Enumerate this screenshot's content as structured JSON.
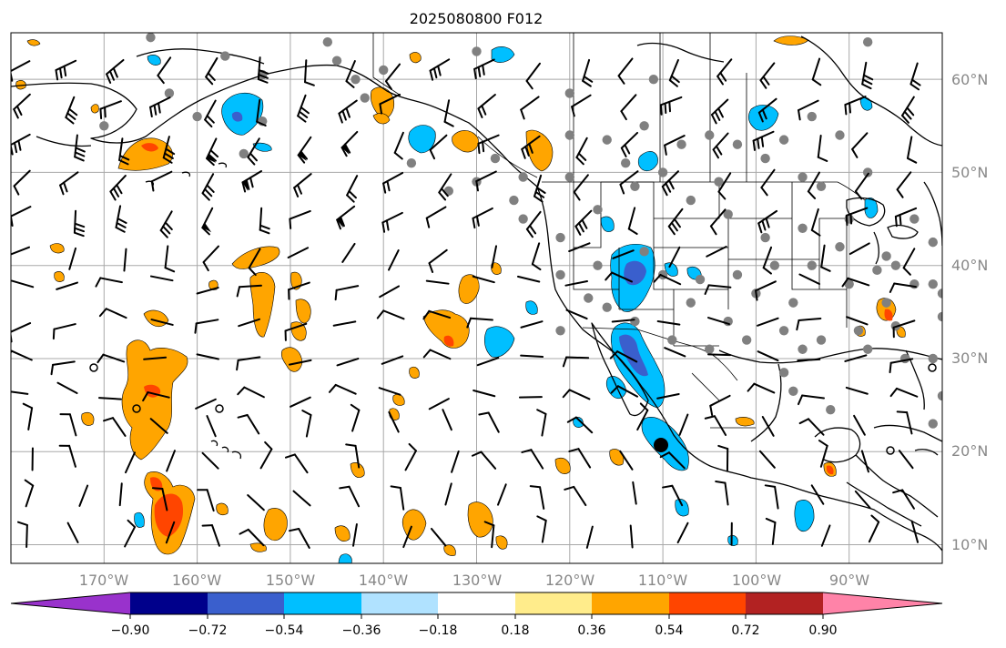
{
  "title": "2025080800 F012",
  "lat_labels": [
    "60°N",
    "50°N",
    "40°N",
    "30°N",
    "20°N",
    "10°N"
  ],
  "lon_labels": [
    "170°W",
    "160°W",
    "150°W",
    "140°W",
    "130°W",
    "120°W",
    "110°W",
    "100°W",
    "90°W"
  ],
  "colorbar": {
    "ticks": [
      "−0.90",
      "−0.72",
      "−0.54",
      "−0.36",
      "−0.18",
      "0.18",
      "0.36",
      "0.54",
      "0.72",
      "0.90"
    ],
    "colors": {
      "under": "#9932cc",
      "bins": [
        "#00008b",
        "#3a5fcd",
        "#00bfff",
        "#b0e2ff",
        "#ffffff",
        "#ffec8b",
        "#ffa500",
        "#ff4500",
        "#b22222",
        "#ff83a8"
      ],
      "over": "#ff83a8"
    }
  },
  "map_extent": {
    "lon_min": -180,
    "lon_max": -80,
    "lat_min": 8,
    "lat_max": 65
  },
  "colors": {
    "land_outline": "#000000",
    "grid": "#a8a8a8",
    "obs_dot": "#808080",
    "orange": "#ffa500",
    "red_orange": "#ff4500",
    "deep_sky_blue": "#00bfff",
    "royal_blue": "#3a5fcd"
  }
}
